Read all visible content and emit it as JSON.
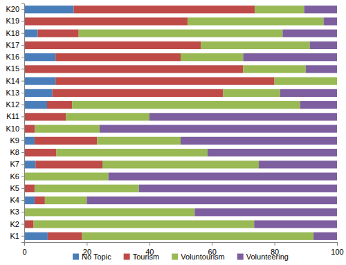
{
  "chart_data": {
    "type": "bar",
    "orientation": "horizontal",
    "stacked": true,
    "grid": false,
    "legend": "bottom",
    "categories": [
      "K1",
      "K2",
      "K3",
      "K4",
      "K5",
      "K6",
      "K7",
      "K8",
      "K9",
      "K10",
      "K11",
      "K12",
      "K13",
      "K14",
      "K15",
      "K16",
      "K17",
      "K18",
      "K19",
      "K20"
    ],
    "xlim": [
      0,
      100
    ],
    "xticks": [
      0,
      20,
      40,
      60,
      80,
      100
    ],
    "series": [
      {
        "name": "No Topic",
        "color": "#4a7ebb",
        "values": [
          7.5,
          0,
          0,
          3.3,
          0,
          0,
          3.6,
          0,
          3.3,
          0,
          0,
          7.3,
          9,
          10,
          0,
          10,
          0,
          4.3,
          0,
          15.8
        ]
      },
      {
        "name": "Tourism",
        "color": "#be4b48",
        "values": [
          11,
          3,
          0,
          3.3,
          3.3,
          0,
          21.4,
          10.3,
          20,
          3.4,
          13.3,
          8,
          54.6,
          70,
          70,
          40,
          56.5,
          13.1,
          52.2,
          57.9
        ]
      },
      {
        "name": "Voluntourism",
        "color": "#98b954",
        "values": [
          74,
          70.5,
          54.5,
          13.4,
          33.4,
          26.9,
          50,
          48.3,
          26.7,
          20.7,
          26.7,
          72.9,
          18.2,
          20,
          20,
          20,
          34.8,
          65.2,
          43.5,
          15.8
        ]
      },
      {
        "name": "Volunteering",
        "color": "#7d5fa0",
        "values": [
          7.5,
          26.5,
          45.5,
          80,
          63.3,
          73.1,
          25,
          41.4,
          50,
          75.9,
          60,
          11.8,
          18.2,
          0,
          10,
          30,
          8.7,
          17.4,
          4.3,
          10.5
        ]
      }
    ]
  }
}
